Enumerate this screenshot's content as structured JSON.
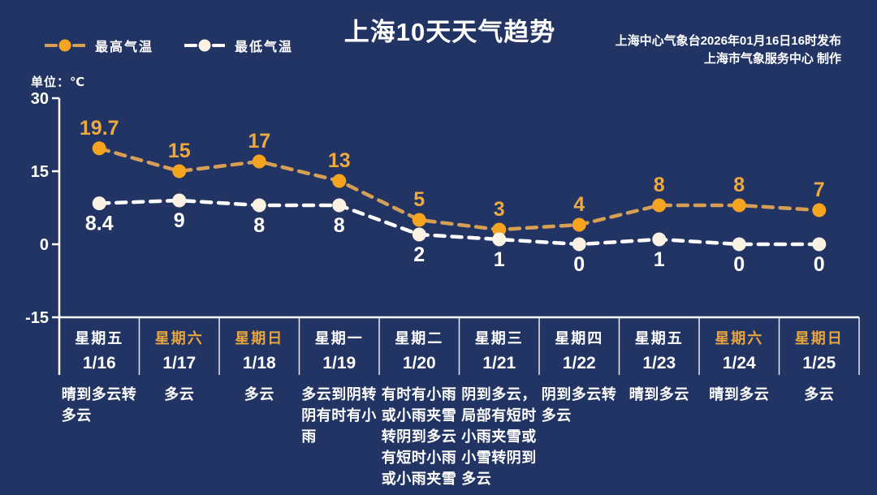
{
  "header": {
    "title": "上海10天天气趋势",
    "issued": "上海中心气象台2026年01月16日16时发布",
    "producer": "上海市气象服务中心  制作"
  },
  "legend": {
    "high": "最高气温",
    "low": "最低气温"
  },
  "unit_label": "单位：℃",
  "colors": {
    "background": "#223463",
    "high_marker": "#F4A41E",
    "high_line": "#D79F55",
    "high_label": "#EFA93F",
    "low_marker": "#FAF3E4",
    "low_line": "#FFFFFF",
    "low_label": "#FFFFFF",
    "weekend_day": "#E9A63F",
    "weekday_day": "#FFFFFF",
    "axis": "#FFFFFF"
  },
  "chart_data": {
    "type": "line",
    "title": "上海10天天气趋势",
    "unit": "℃",
    "categories": [
      "星期五",
      "星期六",
      "星期日",
      "星期一",
      "星期二",
      "星期三",
      "星期四",
      "星期五",
      "星期六",
      "星期日"
    ],
    "x": [
      "1/16",
      "1/17",
      "1/18",
      "1/19",
      "1/20",
      "1/21",
      "1/22",
      "1/23",
      "1/24",
      "1/25"
    ],
    "series": [
      {
        "name": "最高气温",
        "values": [
          19.7,
          15,
          17,
          13,
          5,
          3,
          4,
          8,
          8,
          7
        ]
      },
      {
        "name": "最低气温",
        "values": [
          8.4,
          9,
          8,
          8,
          2,
          1,
          0,
          1,
          0,
          0
        ]
      }
    ],
    "yticks": [
      30,
      15,
      0,
      -15
    ],
    "ylim": [
      -15,
      30
    ],
    "grid": false,
    "legend_position": "top-left",
    "line_style": "dashed"
  },
  "days": [
    {
      "weekday": "星期五",
      "date": "1/16",
      "weekend": false,
      "weather": "晴到多云转多云"
    },
    {
      "weekday": "星期六",
      "date": "1/17",
      "weekend": true,
      "weather": "多云"
    },
    {
      "weekday": "星期日",
      "date": "1/18",
      "weekend": true,
      "weather": "多云"
    },
    {
      "weekday": "星期一",
      "date": "1/19",
      "weekend": false,
      "weather": "多云到阴转阴有时有小雨"
    },
    {
      "weekday": "星期二",
      "date": "1/20",
      "weekend": false,
      "weather": "有时有小雨或小雨夹雪转阴到多云有短时小雨或小雨夹雪"
    },
    {
      "weekday": "星期三",
      "date": "1/21",
      "weekend": false,
      "weather": "阴到多云，局部有短时小雨夹雪或小雪转阴到多云"
    },
    {
      "weekday": "星期四",
      "date": "1/22",
      "weekend": false,
      "weather": "阴到多云转多云"
    },
    {
      "weekday": "星期五",
      "date": "1/23",
      "weekend": false,
      "weather": "晴到多云"
    },
    {
      "weekday": "星期六",
      "date": "1/24",
      "weekend": true,
      "weather": "晴到多云"
    },
    {
      "weekday": "星期日",
      "date": "1/25",
      "weekend": true,
      "weather": "多云"
    }
  ]
}
